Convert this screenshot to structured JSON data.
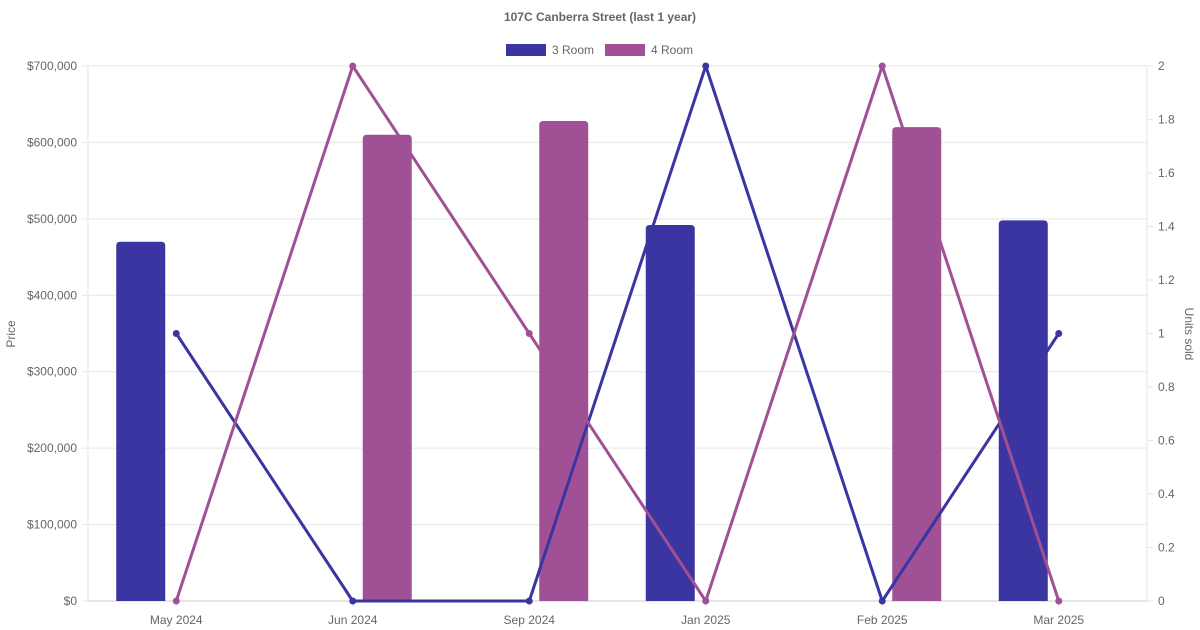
{
  "chart_data": {
    "type": "bar",
    "title": "107C Canberra Street (last 1 year)",
    "categories": [
      "May 2024",
      "Jun 2024",
      "Sep 2024",
      "Jan 2025",
      "Feb 2025",
      "Mar 2025"
    ],
    "y_left": {
      "label": "Price",
      "min": 0,
      "max": 700000,
      "step": 100000,
      "ticks": [
        "$0",
        "$100,000",
        "$200,000",
        "$300,000",
        "$400,000",
        "$500,000",
        "$600,000",
        "$700,000"
      ]
    },
    "y_right": {
      "label": "Units sold",
      "min": 0,
      "max": 2,
      "step": 0.2,
      "ticks": [
        "0",
        "0.2",
        "0.4",
        "0.6",
        "0.8",
        "1",
        "1.2",
        "1.4",
        "1.6",
        "1.8",
        "2"
      ]
    },
    "legend_position": "top-center",
    "grid": true,
    "series": [
      {
        "name": "3 Room",
        "color": "#3a35a1",
        "price": [
          470000,
          null,
          null,
          492000,
          null,
          498000
        ],
        "units": [
          1,
          0,
          0,
          2,
          0,
          1
        ]
      },
      {
        "name": "4 Room",
        "color": "#a05095",
        "price": [
          null,
          610000,
          628000,
          null,
          620000,
          null
        ],
        "units": [
          0,
          2,
          1,
          0,
          2,
          0
        ]
      }
    ]
  }
}
